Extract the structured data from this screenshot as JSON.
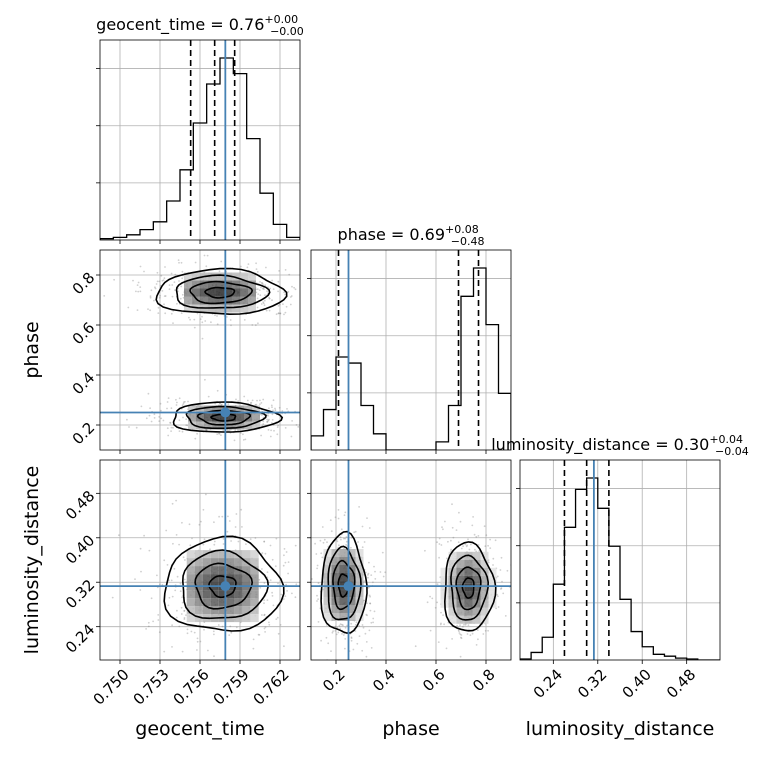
{
  "chart_data": {
    "type": "corner",
    "parameters": [
      "geocent_time",
      "phase",
      "luminosity_distance"
    ],
    "truth_color": "#4682b4",
    "truths": {
      "geocent_time": 0.7579,
      "phase": 0.25,
      "luminosity_distance": 0.313
    },
    "ranges": {
      "geocent_time": [
        0.7485,
        0.7635
      ],
      "phase": [
        0.1,
        0.9
      ],
      "luminosity_distance": [
        0.18,
        0.54
      ]
    },
    "ticks": {
      "geocent_time": [
        "0.750",
        "0.753",
        "0.756",
        "0.759",
        "0.762"
      ],
      "phase": [
        "0.2",
        "0.4",
        "0.6",
        "0.8"
      ],
      "luminosity_distance": [
        "0.24",
        "0.32",
        "0.40",
        "0.48"
      ]
    },
    "marginals": [
      {
        "parameter": "geocent_time",
        "title_main": "geocent_time = 0.76",
        "title_plus": "+0.00",
        "title_minus": "−0.00",
        "quantiles": [
          0.7553,
          0.7571,
          0.7586
        ],
        "bins": [
          0.7485,
          0.7495,
          0.7505,
          0.7515,
          0.7525,
          0.7535,
          0.7545,
          0.7555,
          0.7565,
          0.7575,
          0.7585,
          0.7595,
          0.7605,
          0.7615,
          0.7625,
          0.7635
        ],
        "counts": [
          0.5,
          1,
          2,
          4,
          7,
          15,
          27,
          45,
          60,
          70,
          64,
          39,
          18,
          6,
          1
        ]
      },
      {
        "parameter": "phase",
        "title_main": "phase = 0.69",
        "title_plus": "+0.08",
        "title_minus": "−0.48",
        "quantiles": [
          0.21,
          0.69,
          0.77
        ],
        "bins": [
          0.1,
          0.15,
          0.2,
          0.25,
          0.3,
          0.35,
          0.4,
          0.45,
          0.5,
          0.55,
          0.6,
          0.65,
          0.7,
          0.75,
          0.8,
          0.85,
          0.9
        ],
        "counts": [
          7,
          20,
          46,
          43,
          22,
          8,
          0,
          0,
          0,
          0,
          4,
          22,
          76,
          90,
          62,
          28,
          0
        ]
      },
      {
        "parameter": "luminosity_distance",
        "title_main": "luminosity_distance = 0.30",
        "title_plus": "+0.04",
        "title_minus": "−0.04",
        "quantiles": [
          0.26,
          0.3,
          0.34
        ],
        "bins": [
          0.18,
          0.2,
          0.22,
          0.24,
          0.26,
          0.28,
          0.3,
          0.32,
          0.34,
          0.36,
          0.38,
          0.4,
          0.42,
          0.44,
          0.46,
          0.48,
          0.5,
          0.52,
          0.54
        ],
        "counts": [
          0.5,
          4,
          12,
          40,
          70,
          90,
          96,
          80,
          60,
          32,
          15,
          7,
          3,
          2,
          1,
          0.5,
          0,
          0
        ]
      }
    ],
    "pairs": [
      {
        "x": "geocent_time",
        "y": "phase",
        "clusters": [
          {
            "cx": 0.7575,
            "cy": 0.73,
            "sx": 0.0024,
            "sy": 0.045
          },
          {
            "cx": 0.7578,
            "cy": 0.23,
            "sx": 0.002,
            "sy": 0.03
          }
        ]
      },
      {
        "x": "geocent_time",
        "y": "luminosity_distance",
        "clusters": [
          {
            "cx": 0.7577,
            "cy": 0.313,
            "sx": 0.0022,
            "sy": 0.042
          }
        ]
      },
      {
        "x": "phase",
        "y": "luminosity_distance",
        "clusters": [
          {
            "cx": 0.23,
            "cy": 0.315,
            "sx": 0.045,
            "sy": 0.045
          },
          {
            "cx": 0.73,
            "cy": 0.31,
            "sx": 0.05,
            "sy": 0.04
          }
        ]
      }
    ],
    "axis_labels": {
      "x": [
        "geocent_time",
        "phase",
        "luminosity_distance"
      ],
      "y": [
        "phase",
        "luminosity_distance"
      ]
    }
  }
}
